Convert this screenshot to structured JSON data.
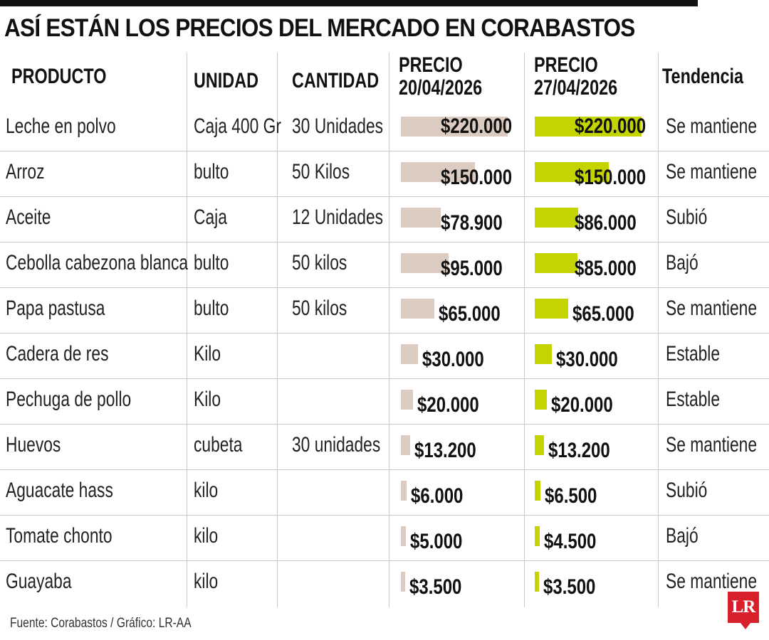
{
  "title": "ASÍ ESTÁN LOS PRECIOS DEL MERCADO EN CORABASTOS",
  "headers": {
    "producto": "PRODUCTO",
    "unidad": "UNIDAD",
    "cantidad": "CANTIDAD",
    "precio1_line1": "PRECIO",
    "precio1_line2": "20/04/2026",
    "precio2_line1": "PRECIO",
    "precio2_line2": "27/04/2026",
    "tendencia": "Tendencia"
  },
  "chart_data": {
    "type": "table",
    "title": "ASÍ ESTÁN LOS PRECIOS DEL MERCADO EN CORABASTOS",
    "columns": [
      "PRODUCTO",
      "UNIDAD",
      "CANTIDAD",
      "PRECIO 20/04/2026",
      "PRECIO 27/04/2026",
      "Tendencia"
    ],
    "series": [
      {
        "name": "PRECIO 20/04/2026",
        "color": "#dccbc0"
      },
      {
        "name": "PRECIO 27/04/2026",
        "color": "#c3d400"
      }
    ],
    "rows": [
      {
        "producto": "Leche en polvo",
        "unidad": "Caja 400 Gr",
        "cantidad": "30 Unidades",
        "precio1": 220000,
        "precio1_label": "$220.000",
        "precio2": 220000,
        "precio2_label": "$220.000",
        "tendencia": "Se mantiene"
      },
      {
        "producto": "Arroz",
        "unidad": "bulto",
        "cantidad": "50 Kilos",
        "precio1": 150000,
        "precio1_label": "$150.000",
        "precio2": 150000,
        "precio2_label": "$150.000",
        "tendencia": "Se mantiene"
      },
      {
        "producto": "Aceite",
        "unidad": "Caja",
        "cantidad": "12 Unidades",
        "precio1": 78900,
        "precio1_label": "$78.900",
        "precio2": 86000,
        "precio2_label": "$86.000",
        "tendencia": "Subió"
      },
      {
        "producto": "Cebolla cabezona blanca",
        "unidad": "bulto",
        "cantidad": "50 kilos",
        "precio1": 95000,
        "precio1_label": "$95.000",
        "precio2": 85000,
        "precio2_label": "$85.000",
        "tendencia": "Bajó"
      },
      {
        "producto": "Papa pastusa",
        "unidad": "bulto",
        "cantidad": "50 kilos",
        "precio1": 65000,
        "precio1_label": "$65.000",
        "precio2": 65000,
        "precio2_label": "$65.000",
        "tendencia": "Se mantiene"
      },
      {
        "producto": "Cadera de res",
        "unidad": "Kilo",
        "cantidad": "",
        "precio1": 30000,
        "precio1_label": "$30.000",
        "precio2": 30000,
        "precio2_label": "$30.000",
        "tendencia": "Estable"
      },
      {
        "producto": "Pechuga de pollo",
        "unidad": "Kilo",
        "cantidad": "",
        "precio1": 20000,
        "precio1_label": "$20.000",
        "precio2": 20000,
        "precio2_label": "$20.000",
        "tendencia": "Estable"
      },
      {
        "producto": "Huevos",
        "unidad": "cubeta",
        "cantidad": "30 unidades",
        "precio1": 13200,
        "precio1_label": "$13.200",
        "precio2": 13200,
        "precio2_label": "$13.200",
        "tendencia": "Se mantiene"
      },
      {
        "producto": "Aguacate hass",
        "unidad": "kilo",
        "cantidad": "",
        "precio1": 6000,
        "precio1_label": "$6.000",
        "precio2": 6500,
        "precio2_label": "$6.500",
        "tendencia": "Subió"
      },
      {
        "producto": "Tomate chonto",
        "unidad": "kilo",
        "cantidad": "",
        "precio1": 5000,
        "precio1_label": "$5.000",
        "precio2": 4500,
        "precio2_label": "$4.500",
        "tendencia": "Bajó"
      },
      {
        "producto": "Guayaba",
        "unidad": "kilo",
        "cantidad": "",
        "precio1": 3500,
        "precio1_label": "$3.500",
        "precio2": 3500,
        "precio2_label": "$3.500",
        "tendencia": "Se mantiene"
      }
    ]
  },
  "source": "Fuente: Corabastos / Gráfico: LR-AA",
  "logo": "LR"
}
